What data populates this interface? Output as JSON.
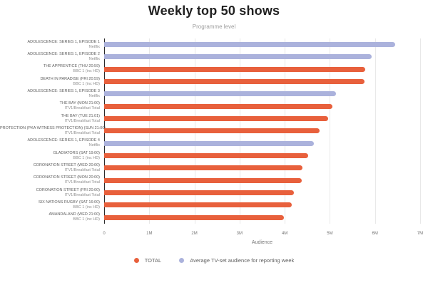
{
  "title": "Weekly top 50 shows",
  "subtitle": "Programme level",
  "chart_data": {
    "type": "bar",
    "orientation": "horizontal",
    "title": "Weekly top 50 shows",
    "subtitle": "Programme level",
    "xlabel": "Audience",
    "x_ticks": [
      "0",
      "1M",
      "2M",
      "3M",
      "4M",
      "5M",
      "6M",
      "7M"
    ],
    "xlim": [
      0,
      7000000
    ],
    "grid": true,
    "legend_position": "bottom",
    "series": [
      {
        "name": "TOTAL",
        "color": "#e8603c"
      },
      {
        "name": "Average TV-set audience for reporting week",
        "color": "#abb2dc"
      }
    ],
    "rows": [
      {
        "programme": "ADOLESCENCE: SERIES 1, EPISODE 1",
        "channel": "Netflix",
        "series": 1,
        "value": 6450000
      },
      {
        "programme": "ADOLESCENCE: SERIES 1, EPISODE 2",
        "channel": "Netflix",
        "series": 1,
        "value": 5930000
      },
      {
        "programme": "THE APPRENTICE (THU 20:59)",
        "channel": "BBC 1 (inc HD)",
        "series": 0,
        "value": 5780000
      },
      {
        "programme": "DEATH IN PARADISE (FRI 20:59)",
        "channel": "BBC 1 (inc HD)",
        "series": 0,
        "value": 5760000
      },
      {
        "programme": "ADOLESCENCE: SERIES 1, EPISODE 3",
        "channel": "Netflix",
        "series": 1,
        "value": 5140000
      },
      {
        "programme": "THE BAY (MON 21:00)",
        "channel": "ITV1/Breakfast Total",
        "series": 0,
        "value": 5050000
      },
      {
        "programme": "THE BAY (TUE 21:01)",
        "channel": "ITV1/Breakfast Total",
        "series": 0,
        "value": 4960000
      },
      {
        "programme": "PROTECTION (PKA WITNESS PROTECTION) (SUN 21:00)",
        "channel": "ITV1/Breakfast Total",
        "series": 0,
        "value": 4770000
      },
      {
        "programme": "ADOLESCENCE: SERIES 1, EPISODE 4",
        "channel": "Netflix",
        "series": 1,
        "value": 4650000
      },
      {
        "programme": "GLADIATORS (SAT 19:00)",
        "channel": "BBC 1 (inc HD)",
        "series": 0,
        "value": 4520000
      },
      {
        "programme": "CORONATION STREET (WED 20:00)",
        "channel": "ITV1/Breakfast Total",
        "series": 0,
        "value": 4400000
      },
      {
        "programme": "CORONATION STREET (MON 20:00)",
        "channel": "ITV1/Breakfast Total",
        "series": 0,
        "value": 4370000
      },
      {
        "programme": "CORONATION STREET (FRI 20:00)",
        "channel": "ITV1/Breakfast Total",
        "series": 0,
        "value": 4200000
      },
      {
        "programme": "SIX NATIONS RUGBY (SAT 16:00)",
        "channel": "BBC 1 (inc HD)",
        "series": 0,
        "value": 4150000
      },
      {
        "programme": "AMANDALAND (WED 21:00)",
        "channel": "BBC 1 (inc HD)",
        "series": 0,
        "value": 3980000
      }
    ]
  }
}
